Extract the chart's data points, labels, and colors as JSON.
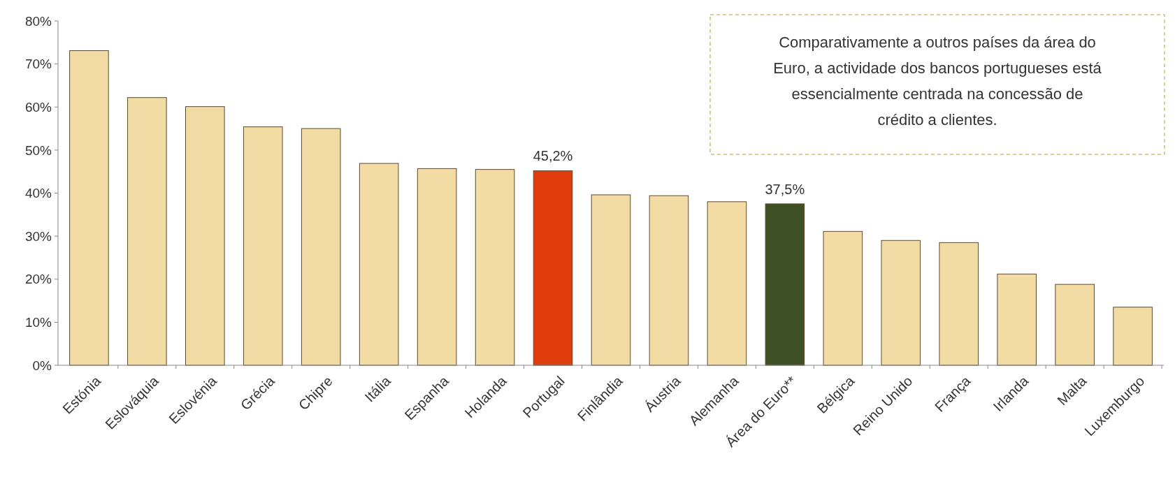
{
  "chart_data": {
    "type": "bar",
    "categories": [
      "Estónia",
      "Eslováquia",
      "Eslovénia",
      "Grécia",
      "Chipre",
      "Itália",
      "Espanha",
      "Holanda",
      "Portugal",
      "Finlândia",
      "Áustria",
      "Alemanha",
      "Área do Euro**",
      "Bélgica",
      "Reino Unido",
      "França",
      "Irlanda",
      "Malta",
      "Luxemburgo"
    ],
    "values": [
      73.1,
      62.2,
      60.1,
      55.4,
      55.0,
      46.9,
      45.7,
      45.5,
      45.2,
      39.6,
      39.4,
      38.0,
      37.5,
      31.1,
      29.0,
      28.5,
      21.2,
      18.8,
      13.5
    ],
    "colors": [
      "#f3dca4",
      "#f3dca4",
      "#f3dca4",
      "#f3dca4",
      "#f3dca4",
      "#f3dca4",
      "#f3dca4",
      "#f3dca4",
      "#e03c0c",
      "#f3dca4",
      "#f3dca4",
      "#f3dca4",
      "#3e5025",
      "#f3dca4",
      "#f3dca4",
      "#f3dca4",
      "#f3dca4",
      "#f3dca4",
      "#f3dca4"
    ],
    "value_labels": [
      null,
      null,
      null,
      null,
      null,
      null,
      null,
      null,
      "45,2%",
      null,
      null,
      null,
      "37,5%",
      null,
      null,
      null,
      null,
      null,
      null
    ],
    "ylim": [
      0,
      80
    ],
    "yticks": [
      {
        "value": 0,
        "label": "0%"
      },
      {
        "value": 10,
        "label": "10%"
      },
      {
        "value": 20,
        "label": "20%"
      },
      {
        "value": 30,
        "label": "30%"
      },
      {
        "value": 40,
        "label": "40%"
      },
      {
        "value": 50,
        "label": "50%"
      },
      {
        "value": 60,
        "label": "60%"
      },
      {
        "value": 70,
        "label": "70%"
      },
      {
        "value": 80,
        "label": "80%"
      }
    ],
    "annotations": [
      "Comparativamente a outros países da área do Euro, a actividade dos bancos portugueses está essencialmente centrada na concessão de crédito a clientes."
    ],
    "grid": false
  }
}
